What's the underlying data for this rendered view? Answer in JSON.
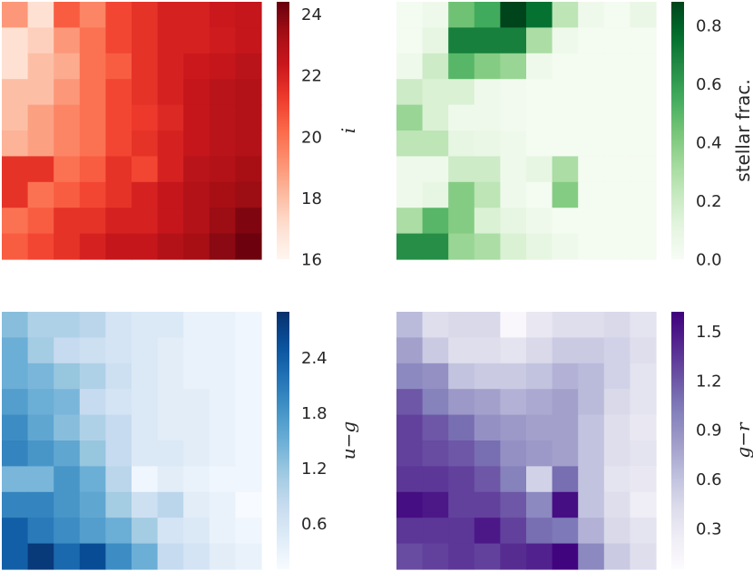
{
  "chart_data": [
    {
      "type": "heatmap",
      "colormap": "Reds",
      "colorbar_label": "i",
      "colorbar_ticks": [
        "24",
        "22",
        "20",
        "18",
        "16"
      ],
      "colorbar_tick_values": [
        24,
        22,
        20,
        18,
        16
      ],
      "vrange": [
        16,
        24.4
      ],
      "grid": [
        [
          19.0,
          17.0,
          20.5,
          19.5,
          21.0,
          21.5,
          22.0,
          22.0,
          22.3,
          22.5
        ],
        [
          17.0,
          17.5,
          19.0,
          20.0,
          21.0,
          21.5,
          22.0,
          22.0,
          22.2,
          22.5
        ],
        [
          17.0,
          18.0,
          18.5,
          20.0,
          20.5,
          21.5,
          22.0,
          22.3,
          22.5,
          22.8
        ],
        [
          18.0,
          18.0,
          19.0,
          20.0,
          21.0,
          21.5,
          22.0,
          22.5,
          22.8,
          23.0
        ],
        [
          18.0,
          18.8,
          19.5,
          20.0,
          21.0,
          21.3,
          21.8,
          22.5,
          22.8,
          23.0
        ],
        [
          18.3,
          18.8,
          19.5,
          20.0,
          21.0,
          21.5,
          22.0,
          22.5,
          22.8,
          23.0
        ],
        [
          21.5,
          21.5,
          20.0,
          20.5,
          21.5,
          21.0,
          22.0,
          22.8,
          23.0,
          23.3
        ],
        [
          21.5,
          20.0,
          20.5,
          21.0,
          21.5,
          22.0,
          22.5,
          23.0,
          23.3,
          23.5
        ],
        [
          20.0,
          20.5,
          21.5,
          21.5,
          22.0,
          22.0,
          22.5,
          23.0,
          23.5,
          24.0
        ],
        [
          20.5,
          21.0,
          21.5,
          22.0,
          22.5,
          22.5,
          23.0,
          23.3,
          23.8,
          24.3
        ]
      ]
    },
    {
      "type": "heatmap",
      "colormap": "Greens",
      "colorbar_label": "stellar frac.",
      "colorbar_ticks": [
        "0.8",
        "0.6",
        "0.4",
        "0.2",
        "0.0"
      ],
      "colorbar_tick_values": [
        0.8,
        0.6,
        0.4,
        0.2,
        0.0
      ],
      "vrange": [
        0,
        0.88
      ],
      "grid": [
        [
          0.02,
          0.05,
          0.45,
          0.55,
          0.88,
          0.75,
          0.25,
          0.05,
          0.02,
          0.08
        ],
        [
          0.02,
          0.1,
          0.7,
          0.7,
          0.7,
          0.3,
          0.05,
          0.02,
          0.02,
          0.02
        ],
        [
          0.05,
          0.2,
          0.5,
          0.4,
          0.35,
          0.05,
          0.02,
          0.02,
          0.02,
          0.02
        ],
        [
          0.2,
          0.15,
          0.15,
          0.05,
          0.03,
          0.02,
          0.02,
          0.02,
          0.02,
          0.02
        ],
        [
          0.35,
          0.15,
          0.05,
          0.05,
          0.03,
          0.02,
          0.02,
          0.02,
          0.02,
          0.02
        ],
        [
          0.25,
          0.25,
          0.1,
          0.08,
          0.05,
          0.02,
          0.02,
          0.02,
          0.02,
          0.02
        ],
        [
          0.05,
          0.05,
          0.2,
          0.2,
          0.05,
          0.1,
          0.3,
          0.02,
          0.02,
          0.02
        ],
        [
          0.05,
          0.1,
          0.4,
          0.25,
          0.05,
          0.02,
          0.4,
          0.02,
          0.02,
          0.02
        ],
        [
          0.3,
          0.5,
          0.4,
          0.15,
          0.1,
          0.05,
          0.02,
          0.02,
          0.02,
          0.02
        ],
        [
          0.65,
          0.65,
          0.35,
          0.3,
          0.15,
          0.1,
          0.05,
          0.02,
          0.02,
          0.02
        ]
      ]
    },
    {
      "type": "heatmap",
      "colormap": "Blues",
      "colorbar_label": "u−g",
      "colorbar_ticks": [
        "2.4",
        "1.8",
        "1.2",
        "0.6"
      ],
      "colorbar_tick_values": [
        2.4,
        1.8,
        1.2,
        0.6
      ],
      "vrange": [
        0.1,
        2.9
      ],
      "grid": [
        [
          1.3,
          1.0,
          1.0,
          0.9,
          0.6,
          0.5,
          0.5,
          0.3,
          0.3,
          0.2
        ],
        [
          1.5,
          1.1,
          0.8,
          0.7,
          0.6,
          0.5,
          0.4,
          0.3,
          0.3,
          0.2
        ],
        [
          1.5,
          1.4,
          1.2,
          1.0,
          0.7,
          0.5,
          0.4,
          0.3,
          0.3,
          0.2
        ],
        [
          1.7,
          1.5,
          1.4,
          0.8,
          0.6,
          0.5,
          0.4,
          0.4,
          0.3,
          0.2
        ],
        [
          1.9,
          1.6,
          1.3,
          1.0,
          0.8,
          0.5,
          0.4,
          0.4,
          0.3,
          0.2
        ],
        [
          2.0,
          1.8,
          1.6,
          1.2,
          0.8,
          0.5,
          0.5,
          0.4,
          0.3,
          0.2
        ],
        [
          1.4,
          1.4,
          1.8,
          1.5,
          0.9,
          0.2,
          0.4,
          0.3,
          0.2,
          0.2
        ],
        [
          2.0,
          2.0,
          1.8,
          1.6,
          1.1,
          0.7,
          0.9,
          0.4,
          0.3,
          0.1
        ],
        [
          2.4,
          2.1,
          1.9,
          1.7,
          1.5,
          1.1,
          0.6,
          0.5,
          0.3,
          0.2
        ],
        [
          2.4,
          2.8,
          2.3,
          2.6,
          1.9,
          1.5,
          0.8,
          0.6,
          0.4,
          0.3
        ]
      ]
    },
    {
      "type": "heatmap",
      "colormap": "Purples",
      "colorbar_label": "g−r",
      "colorbar_ticks": [
        "1.5",
        "1.2",
        "0.9",
        "0.6",
        "0.3"
      ],
      "colorbar_tick_values": [
        1.5,
        1.2,
        0.9,
        0.6,
        0.3
      ],
      "vrange": [
        0.05,
        1.62
      ],
      "grid": [
        [
          0.65,
          0.4,
          0.45,
          0.45,
          0.1,
          0.3,
          0.4,
          0.4,
          0.45,
          0.35
        ],
        [
          0.8,
          0.55,
          0.4,
          0.4,
          0.35,
          0.45,
          0.55,
          0.55,
          0.5,
          0.4
        ],
        [
          0.95,
          0.9,
          0.6,
          0.55,
          0.55,
          0.6,
          0.7,
          0.65,
          0.5,
          0.35
        ],
        [
          1.2,
          1.0,
          0.85,
          0.8,
          0.7,
          0.75,
          0.8,
          0.65,
          0.45,
          0.35
        ],
        [
          1.3,
          1.2,
          1.1,
          0.9,
          0.85,
          0.8,
          0.8,
          0.6,
          0.4,
          0.3
        ],
        [
          1.3,
          1.25,
          1.2,
          1.1,
          0.9,
          0.85,
          0.8,
          0.6,
          0.4,
          0.35
        ],
        [
          1.35,
          1.35,
          1.3,
          1.2,
          1.0,
          0.5,
          1.1,
          0.6,
          0.35,
          0.3
        ],
        [
          1.55,
          1.5,
          1.3,
          1.3,
          1.2,
          0.95,
          1.55,
          0.6,
          0.4,
          0.25
        ],
        [
          1.35,
          1.35,
          1.35,
          1.5,
          1.3,
          1.1,
          1.05,
          0.7,
          0.45,
          0.35
        ],
        [
          1.25,
          1.3,
          1.35,
          1.3,
          1.4,
          1.45,
          1.6,
          0.95,
          0.55,
          0.4
        ]
      ]
    }
  ]
}
